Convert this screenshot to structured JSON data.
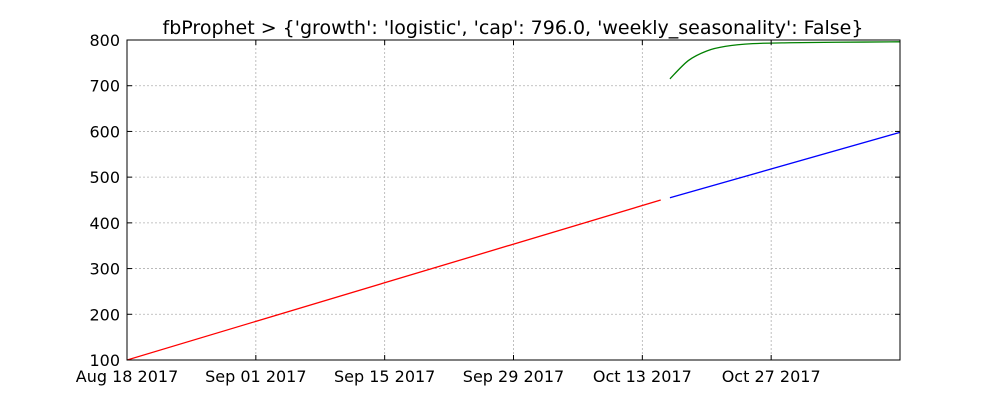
{
  "chart_data": {
    "type": "line",
    "title": "fbProphet > {'growth': 'logistic', 'cap': 796.0, 'weekly_seasonality': False}",
    "xlabel": "",
    "ylabel": "",
    "xlim": [
      "2017-08-18",
      "2017-11-10"
    ],
    "ylim": [
      100,
      800
    ],
    "grid": true,
    "x_ticks": [
      {
        "date": "2017-08-18",
        "label": "Aug 18 2017"
      },
      {
        "date": "2017-09-01",
        "label": "Sep 01 2017"
      },
      {
        "date": "2017-09-15",
        "label": "Sep 15 2017"
      },
      {
        "date": "2017-09-29",
        "label": "Sep 29 2017"
      },
      {
        "date": "2017-10-13",
        "label": "Oct 13 2017"
      },
      {
        "date": "2017-10-27",
        "label": "Oct 27 2017"
      }
    ],
    "y_ticks": [
      100,
      200,
      300,
      400,
      500,
      600,
      700,
      800
    ],
    "series": [
      {
        "color": "#ff0000",
        "points": [
          [
            "2017-08-18",
            100
          ],
          [
            "2017-10-15",
            450
          ]
        ]
      },
      {
        "color": "#0000ff",
        "points": [
          [
            "2017-10-16",
            455
          ],
          [
            "2017-11-10",
            598
          ]
        ]
      },
      {
        "color": "#008000",
        "points": [
          [
            "2017-10-16",
            715
          ],
          [
            "2017-10-18",
            755
          ],
          [
            "2017-10-20",
            776
          ],
          [
            "2017-10-22",
            786
          ],
          [
            "2017-10-25",
            792
          ],
          [
            "2017-10-29",
            794
          ],
          [
            "2017-11-03",
            795
          ],
          [
            "2017-11-10",
            796
          ]
        ]
      }
    ]
  }
}
